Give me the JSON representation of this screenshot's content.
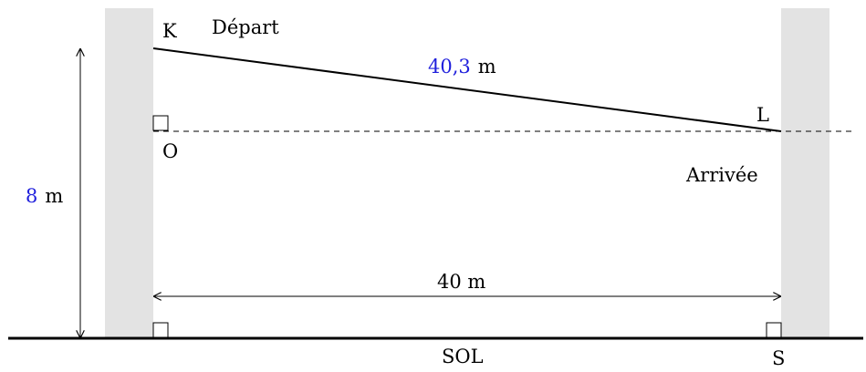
{
  "points": {
    "K": "K",
    "L": "L",
    "O": "O",
    "S": "S"
  },
  "labels": {
    "depart": "Départ",
    "arrivee": "Arrivée",
    "sol": "SOL"
  },
  "measures": {
    "cable_value": "40,3",
    "cable_unit": "m",
    "height_value": "8",
    "height_unit": "m",
    "distance": "40 m"
  },
  "colors": {
    "pillar": "#e3e3e3",
    "value_highlight": "#1f1fdc",
    "line": "#000000"
  }
}
